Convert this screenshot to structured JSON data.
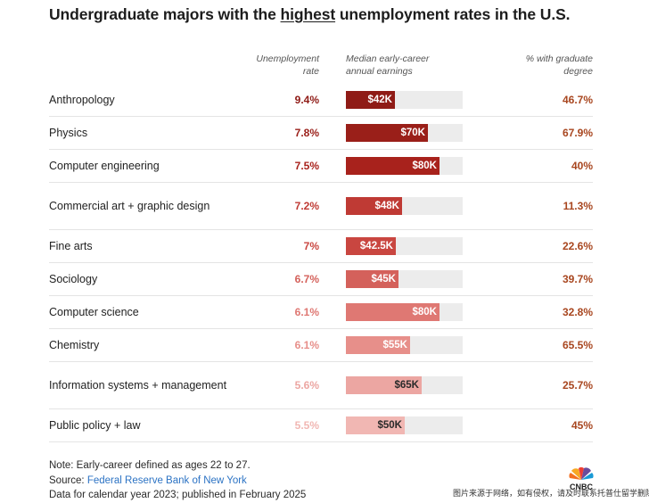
{
  "title_before": "Undergraduate majors with the ",
  "title_highlight": "highest",
  "title_after": " unemployment rates in the U.S.",
  "headers": {
    "rate_line1": "Unemployment",
    "rate_line2": "rate",
    "earn_line1": "Median early-career",
    "earn_line2": "annual earnings",
    "grad_line1": "% with graduate",
    "grad_line2": "degree"
  },
  "chart_data": {
    "type": "table",
    "title": "Undergraduate majors with the highest unemployment rates in the U.S.",
    "columns": [
      "Unemployment rate",
      "Median early-career annual earnings",
      "% with graduate degree"
    ],
    "earnings_axis_max": 100,
    "rows": [
      {
        "major": "Anthropology",
        "rate": "9.4%",
        "earnings": 42,
        "earnings_label": "$42K",
        "grad": "46.7%"
      },
      {
        "major": "Physics",
        "rate": "7.8%",
        "earnings": 70,
        "earnings_label": "$70K",
        "grad": "67.9%"
      },
      {
        "major": "Computer engineering",
        "rate": "7.5%",
        "earnings": 80,
        "earnings_label": "$80K",
        "grad": "40%"
      },
      {
        "major": "Commercial art + graphic design",
        "rate": "7.2%",
        "earnings": 48,
        "earnings_label": "$48K",
        "grad": "11.3%"
      },
      {
        "major": "Fine arts",
        "rate": "7%",
        "earnings": 42.5,
        "earnings_label": "$42.5K",
        "grad": "22.6%"
      },
      {
        "major": "Sociology",
        "rate": "6.7%",
        "earnings": 45,
        "earnings_label": "$45K",
        "grad": "39.7%"
      },
      {
        "major": "Computer science",
        "rate": "6.1%",
        "earnings": 80,
        "earnings_label": "$80K",
        "grad": "32.8%"
      },
      {
        "major": "Chemistry",
        "rate": "6.1%",
        "earnings": 55,
        "earnings_label": "$55K",
        "grad": "65.5%"
      },
      {
        "major": "Information systems + management",
        "rate": "5.6%",
        "earnings": 65,
        "earnings_label": "$65K",
        "grad": "25.7%"
      },
      {
        "major": "Public policy + law",
        "rate": "5.5%",
        "earnings": 50,
        "earnings_label": "$50K",
        "grad": "45%"
      }
    ]
  },
  "colors": {
    "bars": [
      "#8f1b16",
      "#9a1f19",
      "#a8221c",
      "#bf3a34",
      "#c94640",
      "#d4615b",
      "#df7873",
      "#e78f8a",
      "#eca6a2",
      "#f1b7b3"
    ],
    "rate_text": [
      "#8f1b16",
      "#9a1f19",
      "#a8221c",
      "#bf3a34",
      "#c94640",
      "#d4615b",
      "#df7873",
      "#e78f8a",
      "#eca6a2",
      "#f1b7b3"
    ],
    "grad_text": "#a8461f"
  },
  "notes": {
    "note": "Note: Early-career defined as ages 22 to 27.",
    "source_label": "Source: ",
    "source_link": "Federal Reserve Bank of New York",
    "data_line": "Data for calendar year 2023; published in February 2025"
  },
  "logo_text": "CNBC",
  "watermark": "图片来源于网络，如有侵权，请及时联系托普仕留学删除"
}
